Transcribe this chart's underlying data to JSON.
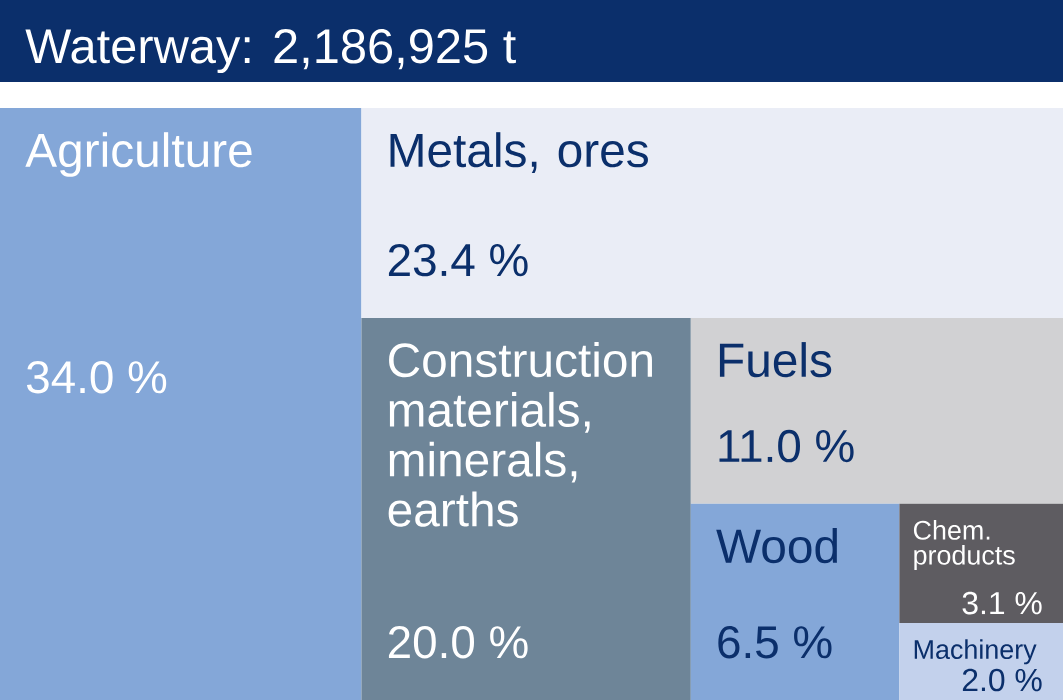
{
  "chart_data": {
    "type": "other",
    "title": "Waterway: 2,186,925 t",
    "categories": [
      "Agriculture",
      "Metals, ores",
      "Construction materials, minerals, earths",
      "Fuels",
      "Wood",
      "Chem. products",
      "Machinery"
    ],
    "values": [
      34.0,
      23.4,
      20.0,
      11.0,
      6.5,
      3.1,
      2.0
    ],
    "value_labels": [
      "34.0 %",
      "23.4 %",
      "20.0 %",
      "11.0 %",
      "6.5 %",
      "3.1 %",
      "2.0 %"
    ],
    "colors": [
      "#84a7d8",
      "#eaedf6",
      "#6e8598",
      "#d1d1d3",
      "#84a7d8",
      "#5e5c61",
      "#c3d1ec"
    ]
  }
}
